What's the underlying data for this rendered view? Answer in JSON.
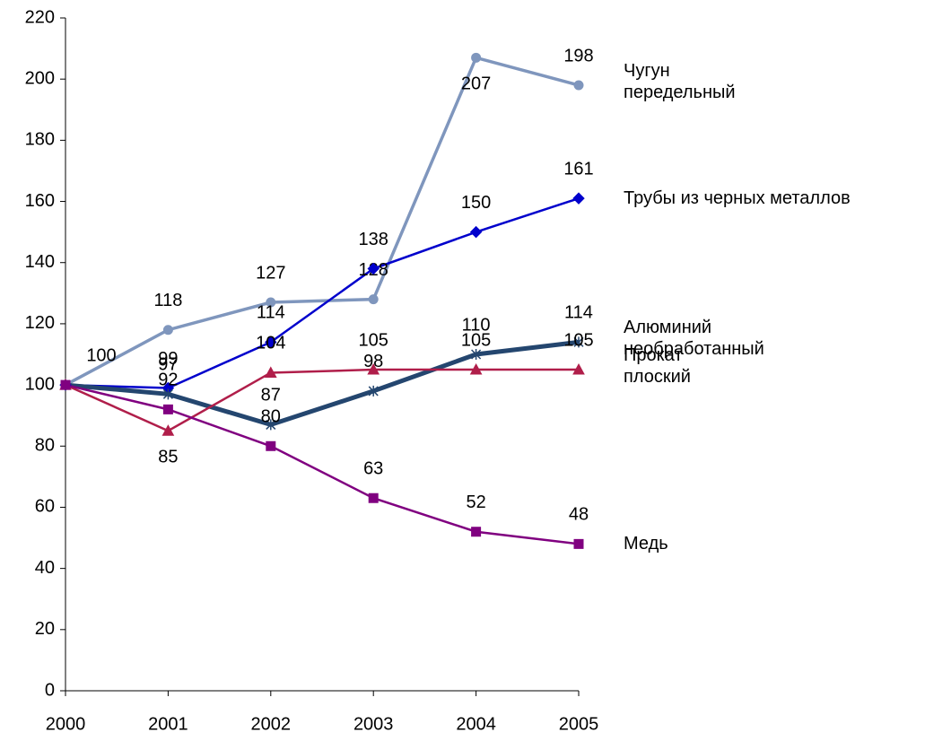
{
  "chart_data": {
    "type": "line",
    "categories": [
      "2000",
      "2001",
      "2002",
      "2003",
      "2004",
      "2005"
    ],
    "ylim": [
      0,
      220
    ],
    "yticks": [
      0,
      20,
      40,
      60,
      80,
      100,
      120,
      140,
      160,
      180,
      200,
      220
    ],
    "series": [
      {
        "name": "Чугун\nпередельный",
        "color": "#7f96bd",
        "marker": "circle",
        "values": [
          100,
          118,
          127,
          128,
          207,
          198
        ]
      },
      {
        "name": "Трубы из черных металлов",
        "color": "#0000cc",
        "marker": "diamond",
        "values": [
          100,
          99,
          114,
          138,
          150,
          161
        ]
      },
      {
        "name": "Алюминий\nнеобработанный",
        "color": "#24466f",
        "marker": "star",
        "values": [
          100,
          97,
          87,
          98,
          110,
          114
        ]
      },
      {
        "name": "Прокат\nплоский",
        "color": "#b01e4a",
        "marker": "triangle",
        "values": [
          100,
          85,
          104,
          105,
          105,
          105
        ]
      },
      {
        "name": "Медь",
        "color": "#800080",
        "marker": "square",
        "values": [
          100,
          92,
          80,
          63,
          52,
          48
        ]
      }
    ]
  }
}
